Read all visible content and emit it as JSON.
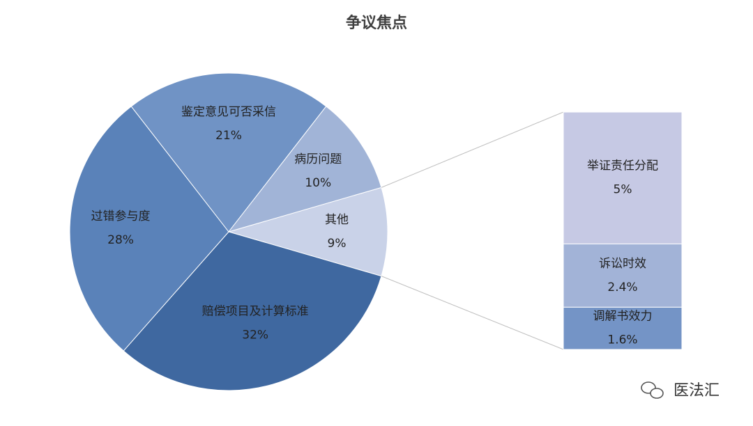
{
  "chart_data": {
    "type": "pie",
    "title": "争议焦点",
    "categories": [
      "其他",
      "赔偿项目及计算标准",
      "过错参与度",
      "鉴定意见可否采信",
      "病历问题"
    ],
    "values": [
      9,
      32,
      28,
      21,
      10
    ],
    "value_labels": [
      "9%",
      "32%",
      "28%",
      "21%",
      "10%"
    ],
    "colors": [
      "#c9d2e8",
      "#3f68a0",
      "#5a82b9",
      "#7093c5",
      "#a1b4d7"
    ],
    "breakdown": {
      "categories": [
        "举证责任分配",
        "诉讼时效",
        "调解书效力"
      ],
      "values": [
        5,
        2.4,
        1.6
      ],
      "value_labels": [
        "5%",
        "2.4%",
        "1.6%"
      ],
      "colors": [
        "#c6c9e4",
        "#a2b3d7",
        "#7494c6"
      ]
    }
  },
  "watermark": "医法汇"
}
